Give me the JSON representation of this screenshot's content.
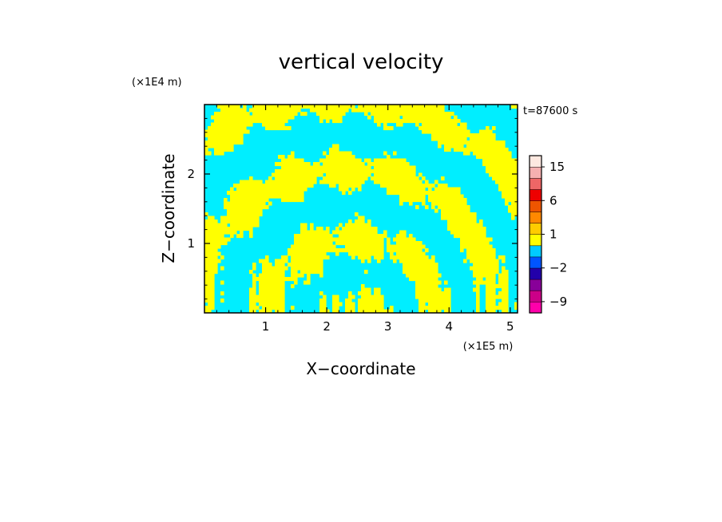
{
  "chart_data": {
    "type": "heatmap",
    "title": "vertical velocity",
    "xlabel": "X−coordinate",
    "ylabel": "Z−coordinate",
    "x_scale_label": "(×1E5 m)",
    "y_scale_label": "(×1E4 m)",
    "time_label": "t=87600 s",
    "xlim": [
      0,
      5.12
    ],
    "ylim": [
      0,
      3.0
    ],
    "x_ticks": [
      1,
      2,
      3,
      4,
      5
    ],
    "x_tick_labels": [
      "1",
      "2",
      "3",
      "4",
      "5"
    ],
    "y_ticks": [
      1,
      2
    ],
    "y_tick_labels": [
      "1",
      "2"
    ],
    "field_colors": {
      "positive": "#ffff00",
      "negative": "#00eeff"
    },
    "colorbar": {
      "tick_labels": [
        "15",
        "6",
        "1",
        "−2",
        "−9"
      ],
      "tick_values": [
        15,
        6,
        1,
        -2,
        -9
      ],
      "bands": [
        {
          "from": -12,
          "to": -9,
          "color": "#ff00aa"
        },
        {
          "from": -9,
          "to": -6,
          "color": "#cc0088"
        },
        {
          "from": -6,
          "to": -4,
          "color": "#880099"
        },
        {
          "from": -4,
          "to": -2,
          "color": "#2200aa"
        },
        {
          "from": -2,
          "to": -1,
          "color": "#0055ff"
        },
        {
          "from": -1,
          "to": 0,
          "color": "#00ccff"
        },
        {
          "from": 0,
          "to": 1,
          "color": "#ffff00"
        },
        {
          "from": 1,
          "to": 2,
          "color": "#ffcc00"
        },
        {
          "from": 2,
          "to": 4,
          "color": "#ff8800"
        },
        {
          "from": 4,
          "to": 6,
          "color": "#ee5500"
        },
        {
          "from": 6,
          "to": 9,
          "color": "#ee0000"
        },
        {
          "from": 9,
          "to": 12,
          "color": "#ee6666"
        },
        {
          "from": 12,
          "to": 15,
          "color": "#f5b0b0"
        },
        {
          "from": 15,
          "to": 20,
          "color": "#fde8e0"
        }
      ]
    }
  }
}
